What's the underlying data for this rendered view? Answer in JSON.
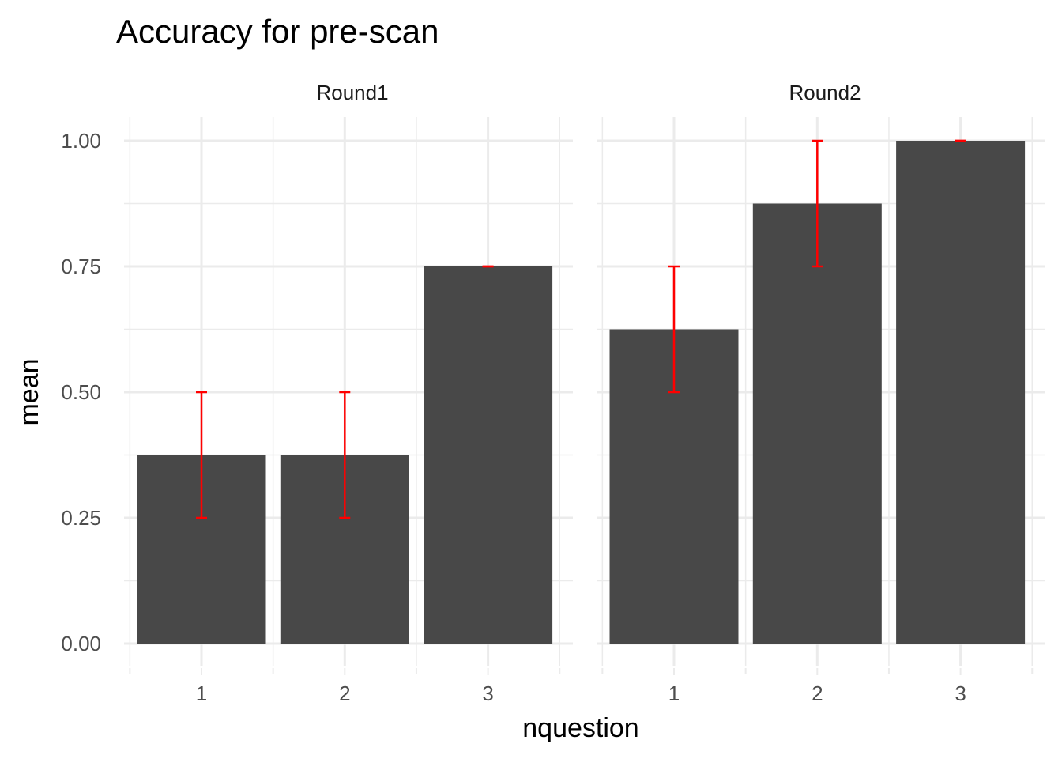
{
  "chart_data": {
    "type": "bar",
    "title": "Accuracy for pre-scan",
    "xlabel": "nquestion",
    "ylabel": "mean",
    "ylim": [
      0,
      1
    ],
    "y_ticks": [
      "0.00",
      "0.25",
      "0.50",
      "0.75",
      "1.00"
    ],
    "y_tick_values": [
      0,
      0.25,
      0.5,
      0.75,
      1.0
    ],
    "categories": [
      "1",
      "2",
      "3"
    ],
    "bar_color": "#484848",
    "error_bar_color": "#ff0000",
    "grid": true,
    "legend": "none",
    "facets": [
      {
        "name": "Round1",
        "values": [
          0.375,
          0.375,
          0.75
        ],
        "error_low": [
          0.25,
          0.25,
          0.75
        ],
        "error_high": [
          0.5,
          0.5,
          0.75
        ]
      },
      {
        "name": "Round2",
        "values": [
          0.625,
          0.875,
          1.0
        ],
        "error_low": [
          0.5,
          0.75,
          1.0
        ],
        "error_high": [
          0.75,
          1.0,
          1.0
        ]
      }
    ]
  }
}
